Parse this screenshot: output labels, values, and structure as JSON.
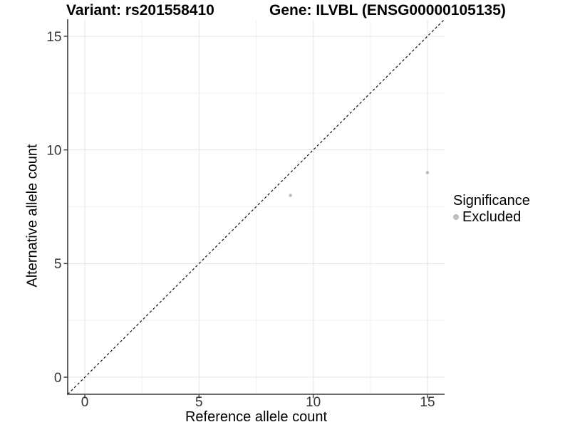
{
  "chart_data": {
    "type": "scatter",
    "title_left": "Variant: rs201558410",
    "title_right": "Gene: ILVBL (ENSG00000105135)",
    "xlabel": "Reference allele count",
    "ylabel": "Alternative allele count",
    "xlim": [
      -0.75,
      15.75
    ],
    "ylim": [
      -0.75,
      15.75
    ],
    "x_ticks": [
      0,
      5,
      10,
      15
    ],
    "y_ticks": [
      0,
      5,
      10,
      15
    ],
    "x_minor_ticks": [
      2.5,
      7.5,
      12.5
    ],
    "y_minor_ticks": [
      2.5,
      7.5,
      12.5
    ],
    "grid": "major+minor",
    "reference_line": {
      "type": "identity",
      "style": "dashed",
      "from": [
        -0.75,
        -0.75
      ],
      "to": [
        15.75,
        15.75
      ]
    },
    "series": [
      {
        "name": "Excluded",
        "color": "#bdbdbd",
        "points": [
          {
            "x": 9,
            "y": 8
          },
          {
            "x": 15,
            "y": 9
          }
        ]
      }
    ],
    "legend": {
      "title": "Significance",
      "position": "right"
    }
  },
  "colors": {
    "axis": "#3c3c3c",
    "tick": "#3c3c3c",
    "tick_label": "#333333",
    "grid_major": "#e4e4e4",
    "grid_minor": "#f1f1f1",
    "dashed_line": "#111111",
    "marker": "#bdbdbd",
    "background": "#ffffff"
  }
}
